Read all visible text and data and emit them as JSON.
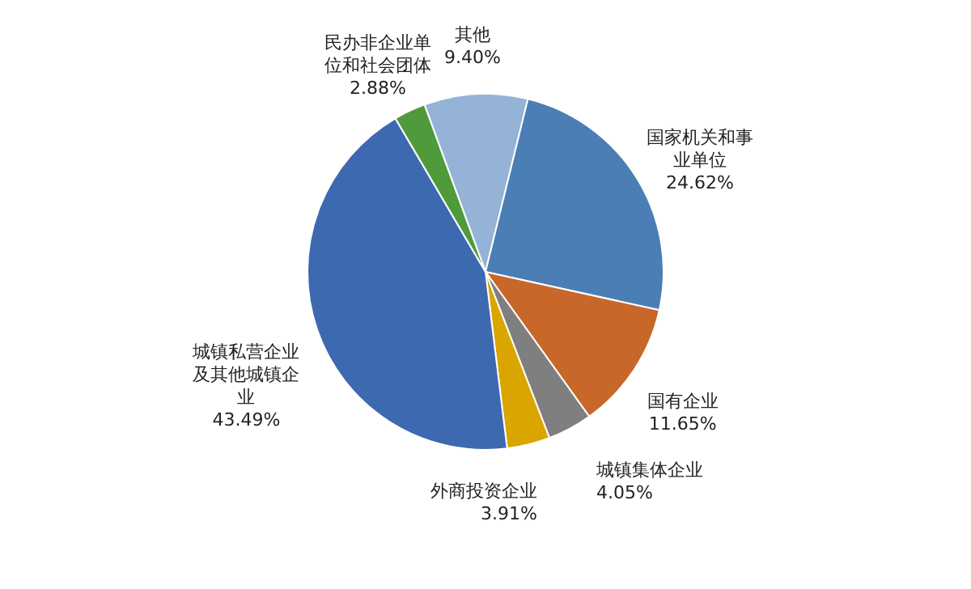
{
  "chart_data": {
    "type": "pie",
    "categories": [
      "其他",
      "国家机关和事业单位",
      "国有企业",
      "城镇集体企业",
      "外商投资企业",
      "城镇私营企业及其他城镇企业",
      "民办非企业单位和社会团体"
    ],
    "values": [
      9.4,
      24.62,
      11.65,
      4.05,
      3.91,
      43.49,
      2.88
    ],
    "value_labels": [
      "9.40%",
      "24.62%",
      "11.65%",
      "4.05%",
      "3.91%",
      "43.49%",
      "2.88%"
    ],
    "colors": [
      "#95b3d7",
      "#4a7eb5",
      "#c8672a",
      "#7f7f7f",
      "#dba500",
      "#3d69b1",
      "#4f9a3a"
    ]
  }
}
